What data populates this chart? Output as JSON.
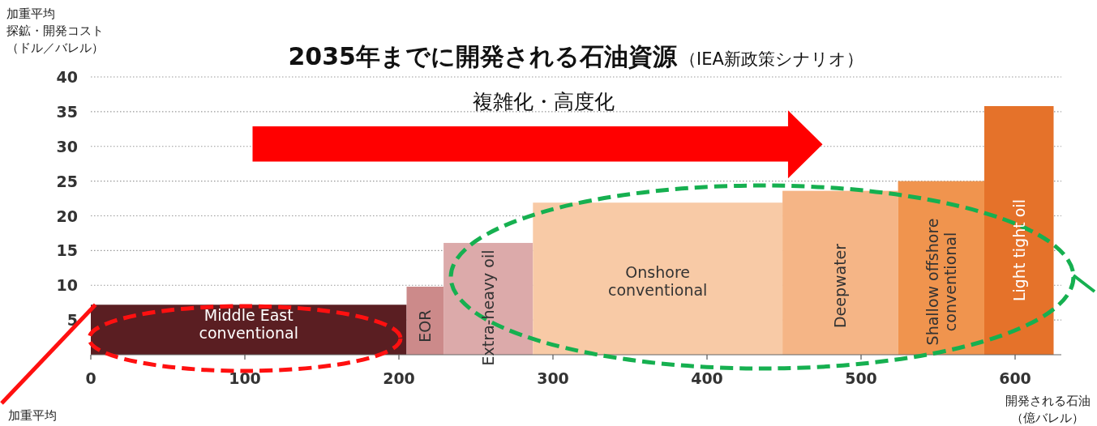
{
  "chart_data": {
    "type": "histogram",
    "title": "2035年までに開発される石油資源",
    "subtitle": "（IEA新政策シナリオ）",
    "ylabel": "加重平均探鉱・開発コスト（ドル／バレル）",
    "xlabel": "開発される石油（億バレル）",
    "bins": [
      0,
      205,
      229,
      287,
      449,
      524,
      580,
      625
    ],
    "values": [
      7.2,
      9.8,
      16.1,
      21.9,
      23.6,
      25,
      35.8
    ],
    "colors": [
      "#5a1e22",
      "#cc8a8a",
      "#dcaaaa",
      "#f8caa6",
      "#f5b586",
      "#f0944e",
      "#e5722a"
    ],
    "xlim": [
      0,
      630
    ],
    "xticks": [
      0,
      100,
      200,
      300,
      400,
      500,
      600
    ],
    "ylim": [
      0,
      40
    ],
    "yticks": [
      5,
      10,
      15,
      20,
      25,
      30,
      35,
      40
    ],
    "grid": "y",
    "annotations": [
      "複雑化・高度化",
      {
        "text": "加重平均",
        "x": 3,
        "y": 7.2
      },
      "Middle East\nconventional",
      "EOR",
      "Extra-heavy oil",
      "Onshore\nconventional",
      "Deepwater",
      "Shallow offshore\nconventional",
      "Light tight oil"
    ]
  }
}
